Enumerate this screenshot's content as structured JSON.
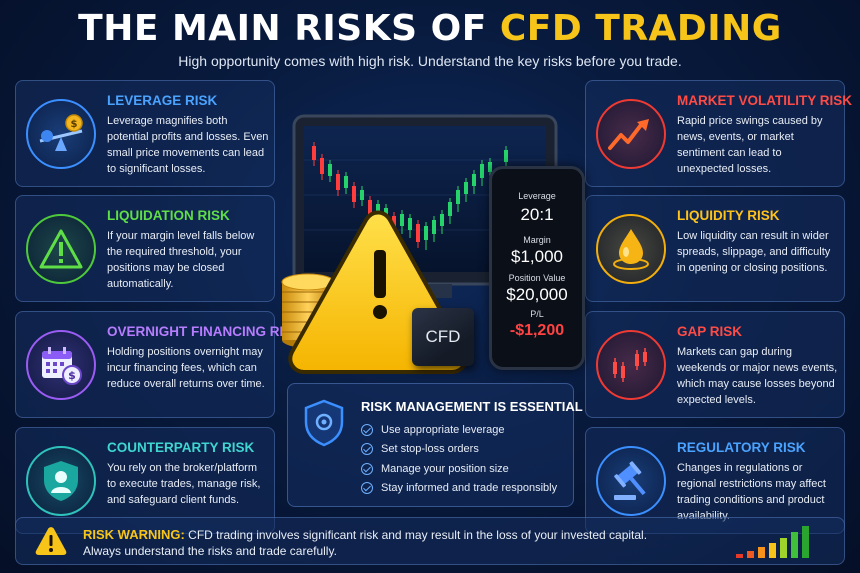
{
  "header": {
    "title_prefix": "THE MAIN RISKS OF ",
    "title_highlight": "CFD TRADING",
    "subtitle": "High opportunity comes with high risk. Understand the key risks before you trade."
  },
  "risks_left": [
    {
      "title": "LEVERAGE RISK",
      "icon": "scale-coin-icon",
      "color": "#4aa3ff",
      "body": "Leverage magnifies both potential profits and losses. Even small price movements can lead to significant losses."
    },
    {
      "title": "LIQUIDATION RISK",
      "icon": "warning-triangle-icon",
      "color": "#5fde47",
      "body": "If your margin level falls below the required threshold, your positions may be closed automatically."
    },
    {
      "title": "OVERNIGHT FINANCING RISK",
      "icon": "calendar-dollar-icon",
      "color": "#b77dff",
      "body": "Holding positions overnight may incur financing fees, which can reduce overall returns over time."
    },
    {
      "title": "COUNTERPARTY RISK",
      "icon": "shield-user-icon",
      "color": "#3fd6d0",
      "body": "You rely on the broker/platform to execute trades, manage risk, and safeguard client funds."
    }
  ],
  "risks_right": [
    {
      "title": "MARKET VOLATILITY RISK",
      "icon": "zigzag-arrow-icon",
      "color": "#ff4b45",
      "body": "Rapid price swings caused by news, events, or market sentiment can lead to unexpected losses."
    },
    {
      "title": "LIQUIDITY RISK",
      "icon": "droplet-icon",
      "color": "#ffc21a",
      "body": "Low liquidity can result in wider spreads, slippage, and difficulty in opening or closing positions."
    },
    {
      "title": "GAP RISK",
      "icon": "candlestick-gap-icon",
      "color": "#ff4b45",
      "body": "Markets can gap during weekends or major news events, which may cause losses beyond expected levels."
    },
    {
      "title": "REGULATORY RISK",
      "icon": "gavel-icon",
      "color": "#4aa3ff",
      "body": "Changes in regulations or regional restrictions may affect trading conditions and product availability."
    }
  ],
  "phone": {
    "leverage_label": "Leverage",
    "leverage_value": "20:1",
    "margin_label": "Margin",
    "margin_value": "$1,000",
    "position_label": "Position Value",
    "position_value": "$20,000",
    "pl_label": "P/L",
    "pl_value": "-$1,200"
  },
  "cube_label": "CFD",
  "risk_management": {
    "title": "RISK MANAGEMENT IS ESSENTIAL",
    "icon": "shield-icon",
    "items": [
      "Use appropriate leverage",
      "Set stop-loss orders",
      "Manage your position size",
      "Stay informed and trade responsibly"
    ]
  },
  "warning": {
    "label": "RISK WARNING:",
    "line1": " CFD trading involves significant risk and may result in the loss of your invested capital.",
    "line2": "Always understand the risks and trade carefully.",
    "icon": "warning-icon"
  },
  "colors": {
    "accent": "#f7c519",
    "background": "#081a3d"
  }
}
